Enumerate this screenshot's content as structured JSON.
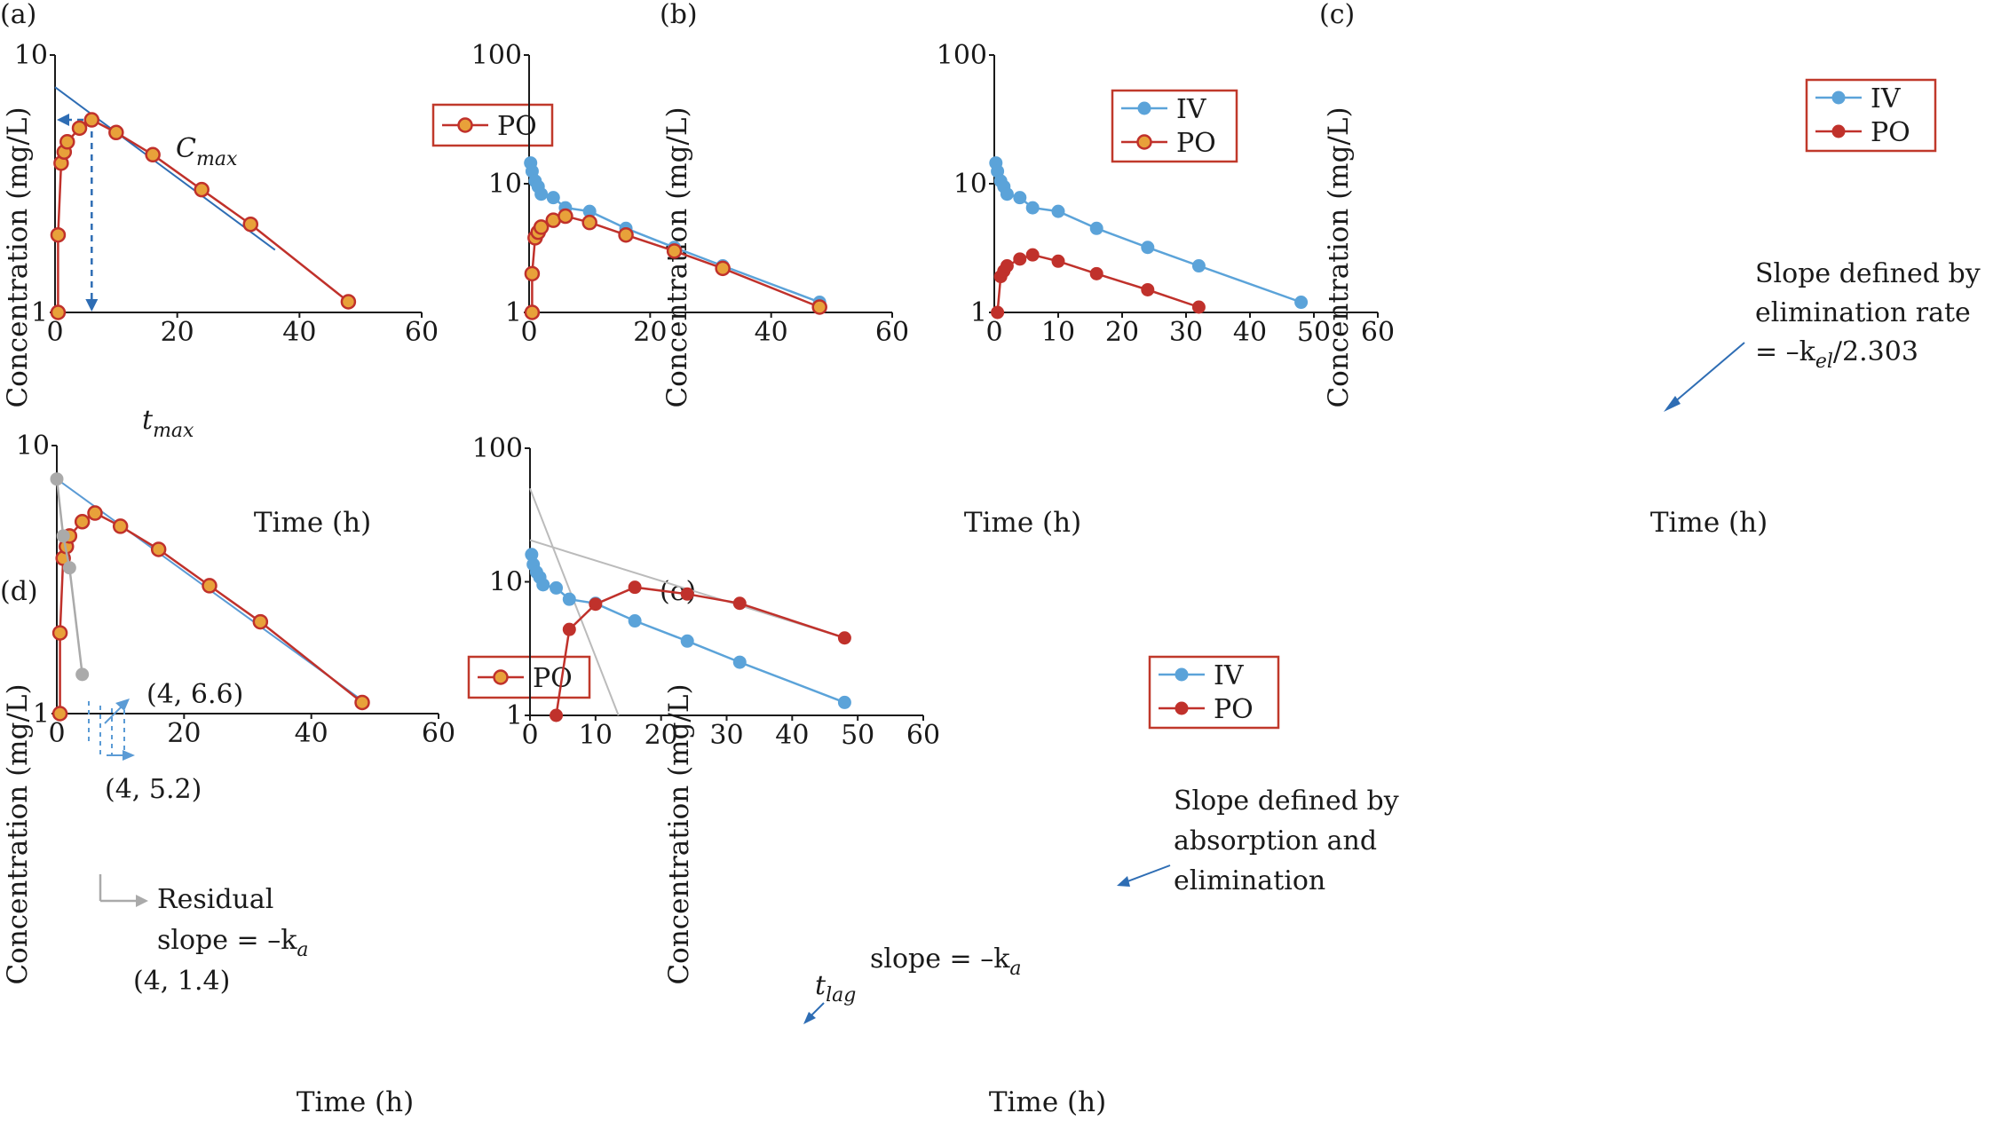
{
  "chart_data": [
    {
      "panel": "(a)",
      "type": "line",
      "yscale": "log",
      "xlabel": "Time (h)",
      "ylabel": "Concentration (mg/L)",
      "xlim": [
        0,
        60
      ],
      "ylim": [
        1,
        10
      ],
      "xticks": [
        "0",
        "20",
        "40",
        "60"
      ],
      "yticks": [
        {
          "value": 1,
          "label": "1"
        },
        {
          "value": 10,
          "label": "10"
        }
      ],
      "legend": [
        "PO"
      ],
      "legend_position": "top-right",
      "series": [
        {
          "name": "PO",
          "color": "#c0312b",
          "marker_fill": "#e8a13a",
          "x": [
            0.5,
            0.5,
            1,
            1.5,
            2,
            4,
            6,
            10,
            16,
            24,
            32,
            48
          ],
          "y": [
            1.0,
            2.0,
            3.8,
            4.2,
            4.6,
            5.2,
            5.6,
            5.0,
            4.1,
            3.0,
            2.2,
            1.1
          ]
        }
      ],
      "lines": [
        {
          "name": "elimination-phase-line",
          "color": "#2e6db4",
          "x": [
            0,
            36
          ],
          "y": [
            7.5,
            1.75
          ]
        }
      ],
      "annotations": [
        {
          "name": "cmax-label",
          "text": "C",
          "sub": "max"
        },
        {
          "name": "tmax-label",
          "text": "t",
          "sub": "max"
        }
      ],
      "guides": {
        "cmax": 5.6,
        "tmax": 6
      }
    },
    {
      "panel": "(b)",
      "type": "line",
      "yscale": "log",
      "xlabel": "Time (h)",
      "ylabel": "Concentration (mg/L)",
      "xlim": [
        0,
        60
      ],
      "ylim": [
        1,
        100
      ],
      "xticks": [
        "0",
        "20",
        "40",
        "60"
      ],
      "yticks": [
        {
          "value": 1,
          "label": "1"
        },
        {
          "value": 10,
          "label": "10"
        },
        {
          "value": 100,
          "label": "100"
        }
      ],
      "legend": [
        "IV",
        "PO"
      ],
      "legend_position": "top-right",
      "series": [
        {
          "name": "IV",
          "color": "#5ba3d9",
          "marker_fill": "#5ba3d9",
          "x": [
            0.25,
            0.5,
            1,
            1.5,
            2,
            4,
            6,
            10,
            16,
            24,
            32,
            48
          ],
          "y": [
            14.5,
            12.5,
            10.5,
            9.5,
            8.3,
            7.8,
            6.5,
            6.1,
            4.5,
            3.2,
            2.3,
            1.2
          ]
        },
        {
          "name": "PO",
          "color": "#c0312b",
          "marker_fill": "#e8a13a",
          "x": [
            0.5,
            0.5,
            1,
            1.5,
            2,
            4,
            6,
            10,
            16,
            24,
            32,
            48
          ],
          "y": [
            1.0,
            2.0,
            3.8,
            4.2,
            4.6,
            5.2,
            5.6,
            5.0,
            4.0,
            3.0,
            2.2,
            1.1
          ]
        }
      ]
    },
    {
      "panel": "(c)",
      "type": "line",
      "yscale": "log",
      "xlabel": "Time (h)",
      "ylabel": "Concentration (mg/L)",
      "xlim": [
        0,
        60
      ],
      "ylim": [
        1,
        100
      ],
      "xticks": [
        "0",
        "10",
        "20",
        "30",
        "40",
        "50",
        "60"
      ],
      "yticks": [
        {
          "value": 1,
          "label": "1"
        },
        {
          "value": 10,
          "label": "10"
        },
        {
          "value": 100,
          "label": "100"
        }
      ],
      "legend": [
        "IV",
        "PO"
      ],
      "legend_position": "top-right",
      "series": [
        {
          "name": "IV",
          "color": "#5ba3d9",
          "marker_fill": "#5ba3d9",
          "x": [
            0.25,
            0.5,
            1,
            1.5,
            2,
            4,
            6,
            10,
            16,
            24,
            32,
            48
          ],
          "y": [
            14.5,
            12.5,
            10.5,
            9.5,
            8.3,
            7.8,
            6.5,
            6.1,
            4.5,
            3.2,
            2.3,
            1.2
          ]
        },
        {
          "name": "PO",
          "color": "#c0312b",
          "marker_fill": "#c0312b",
          "x": [
            0.5,
            1,
            1.5,
            2,
            4,
            6,
            10,
            16,
            24,
            32
          ],
          "y": [
            1.0,
            1.9,
            2.1,
            2.3,
            2.6,
            2.8,
            2.5,
            2.0,
            1.5,
            1.1
          ]
        }
      ],
      "annotations": [
        {
          "name": "slope-label",
          "lines": [
            "Slope defined by",
            "elimination rate",
            "= –k",
            "el",
            "/2.303"
          ]
        }
      ]
    },
    {
      "panel": "(d)",
      "type": "line",
      "yscale": "log",
      "xlabel": "Time (h)",
      "ylabel": "Concentration (mg/L)",
      "xlim": [
        0,
        60
      ],
      "ylim": [
        1,
        10
      ],
      "xticks": [
        "0",
        "20",
        "40",
        "60"
      ],
      "yticks": [
        {
          "value": 1,
          "label": "1"
        },
        {
          "value": 10,
          "label": "10"
        }
      ],
      "legend": [
        "PO"
      ],
      "legend_position": "top-right",
      "series": [
        {
          "name": "PO",
          "color": "#c0312b",
          "marker_fill": "#e8a13a",
          "x": [
            0.5,
            0.5,
            1,
            1.5,
            2,
            4,
            6,
            10,
            16,
            24,
            32,
            48
          ],
          "y": [
            1.0,
            2.0,
            3.8,
            4.2,
            4.6,
            5.2,
            5.6,
            5.0,
            4.1,
            3.0,
            2.2,
            1.1
          ]
        },
        {
          "name": "Residual",
          "color": "#aaaaaa",
          "marker_fill": "#aaaaaa",
          "x": [
            0,
            1,
            2,
            4
          ],
          "y": [
            7.5,
            4.6,
            3.5,
            1.4
          ]
        }
      ],
      "lines": [
        {
          "name": "elimination-phase-line",
          "color": "#5b9bd5",
          "x": [
            0,
            48
          ],
          "y": [
            7.5,
            1.12
          ]
        }
      ],
      "annotations": [
        {
          "name": "point-upper-label",
          "text": "(4, 6.6)"
        },
        {
          "name": "point-lower-label",
          "text": "(4, 5.2)"
        },
        {
          "name": "residual-label-1",
          "text": "Residual"
        },
        {
          "name": "residual-label-2",
          "text": "slope = –k",
          "sub": "a"
        },
        {
          "name": "residual-point-label",
          "text": "(4, 1.4)"
        }
      ]
    },
    {
      "panel": "(e)",
      "type": "line",
      "yscale": "log",
      "xlabel": "Time (h)",
      "ylabel": "Concentration (mg/L)",
      "xlim": [
        0,
        60
      ],
      "ylim": [
        1,
        100
      ],
      "xticks": [
        "0",
        "10",
        "20",
        "30",
        "40",
        "50",
        "60"
      ],
      "yticks": [
        {
          "value": 1,
          "label": "1"
        },
        {
          "value": 10,
          "label": "10"
        },
        {
          "value": 100,
          "label": "100"
        }
      ],
      "legend": [
        "IV",
        "PO"
      ],
      "legend_position": "top-right",
      "series": [
        {
          "name": "IV",
          "color": "#5ba3d9",
          "marker_fill": "#5ba3d9",
          "x": [
            0.25,
            0.5,
            1,
            1.5,
            2,
            4,
            6,
            10,
            16,
            24,
            32,
            48
          ],
          "y": [
            16,
            13.5,
            11.8,
            10.8,
            9.5,
            9,
            7.4,
            6.9,
            5.1,
            3.6,
            2.5,
            1.25
          ]
        },
        {
          "name": "PO",
          "color": "#c0312b",
          "marker_fill": "#c0312b",
          "x": [
            4,
            6,
            10,
            16,
            24,
            32,
            48
          ],
          "y": [
            1.0,
            4.4,
            6.8,
            9.1,
            8.1,
            6.9,
            3.8
          ]
        }
      ],
      "lines": [
        {
          "name": "elimination-extrapolation-line",
          "color": "#bbbbbb",
          "x": [
            0,
            48
          ],
          "y": [
            20.5,
            3.8
          ]
        },
        {
          "name": "absorption-extrapolation-line",
          "color": "#bbbbbb",
          "x": [
            0,
            13.5
          ],
          "y": [
            50,
            1.0
          ]
        }
      ],
      "annotations": [
        {
          "name": "slope-label",
          "lines": [
            "Slope defined by",
            "absorption and",
            "elimination"
          ]
        },
        {
          "name": "ka-slope-label",
          "text": "slope = –k",
          "sub": "a"
        },
        {
          "name": "tlag-label",
          "text": "t",
          "sub": "lag"
        }
      ]
    }
  ]
}
